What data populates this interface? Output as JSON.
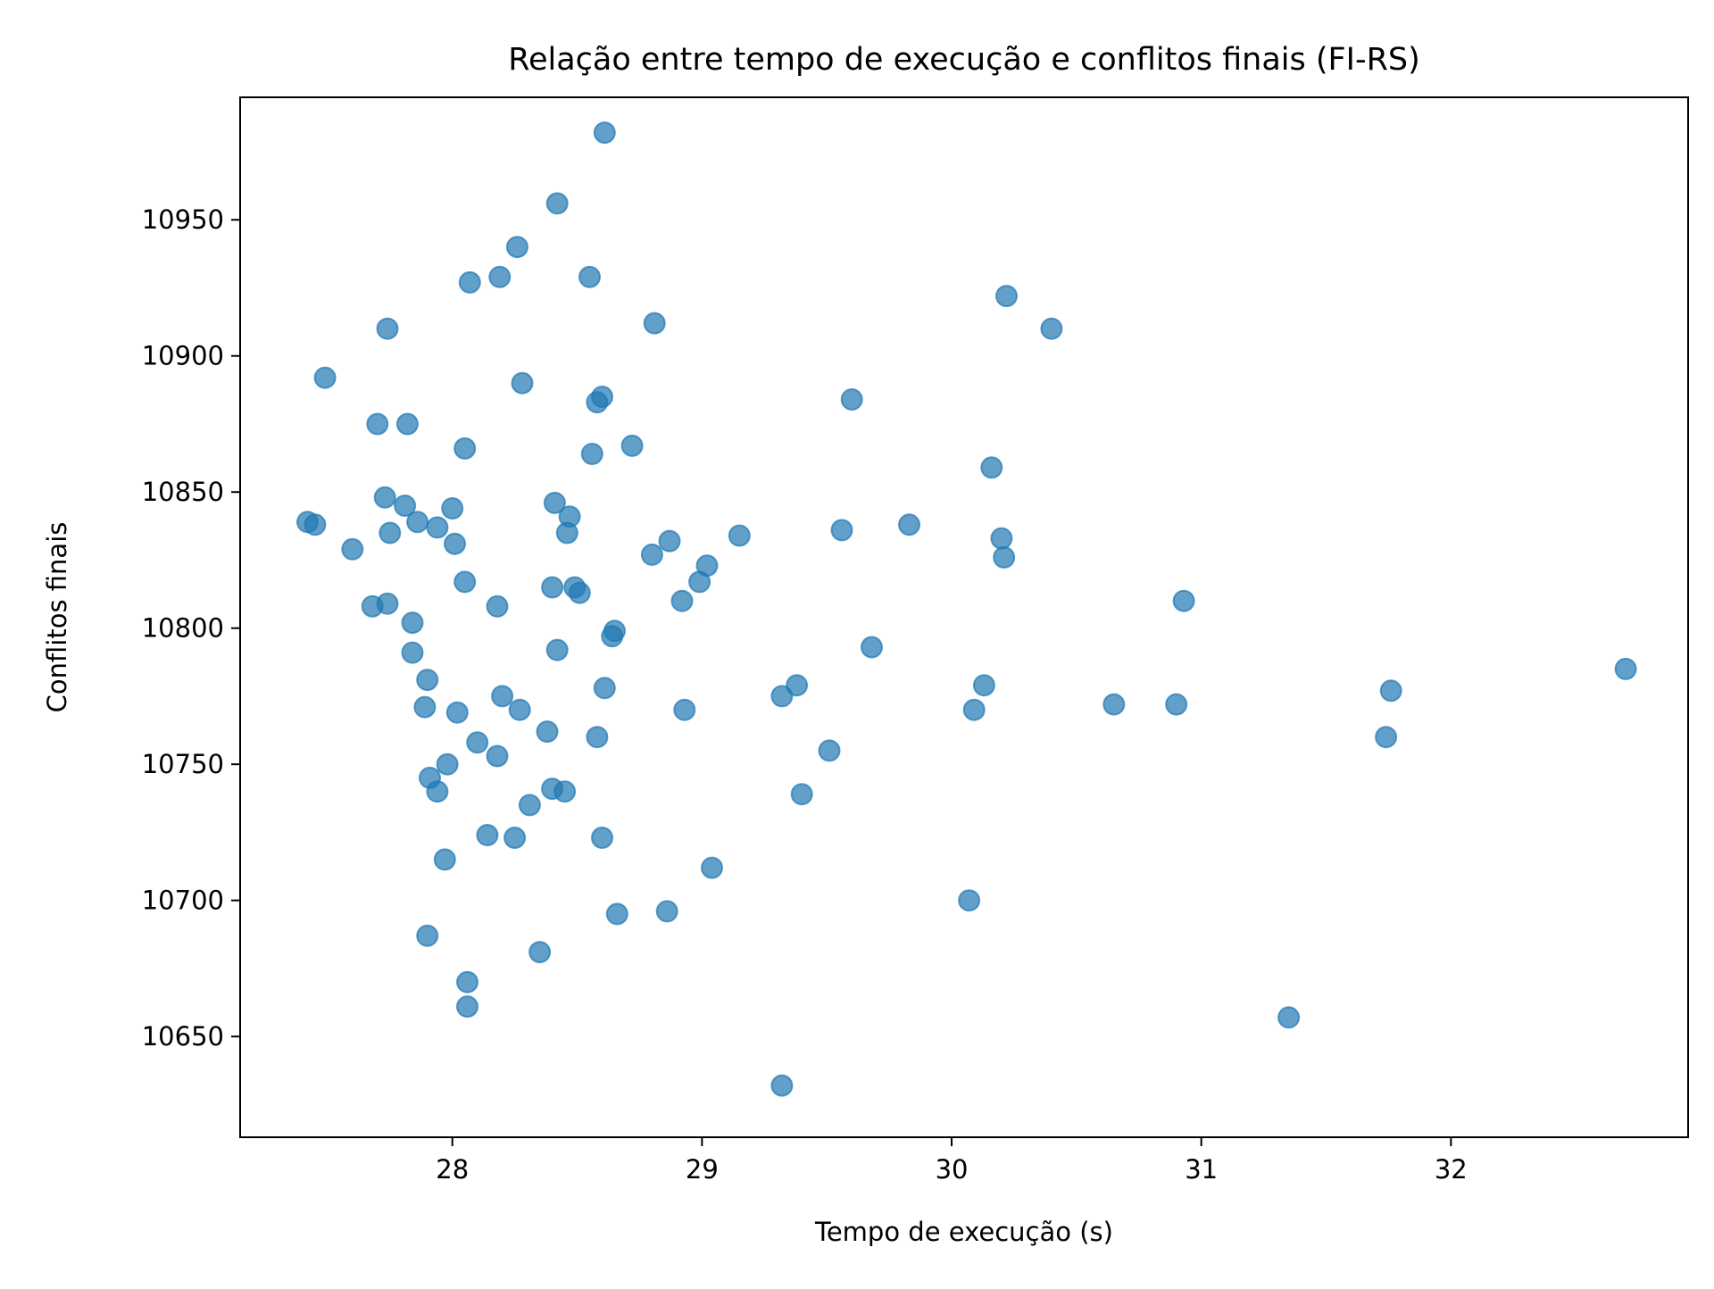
{
  "chart_data": {
    "type": "scatter",
    "title": "Relação entre tempo de execução e conflitos finais (FI-RS)",
    "xlabel": "Tempo de execução (s)",
    "ylabel": "Conflitos finais",
    "xlim": [
      27.15,
      32.95
    ],
    "ylim": [
      10613,
      10995
    ],
    "xticks": [
      28,
      29,
      30,
      31,
      32
    ],
    "xtick_labels": [
      "28",
      "29",
      "30",
      "31",
      "32"
    ],
    "yticks": [
      10650,
      10700,
      10750,
      10800,
      10850,
      10900,
      10950
    ],
    "ytick_labels": [
      "10650",
      "10700",
      "10750",
      "10800",
      "10850",
      "10900",
      "10950"
    ],
    "grid": false,
    "marker_color": "#1f77b4",
    "marker_opacity": 0.7,
    "series": [
      {
        "points": [
          [
            28.61,
            10982
          ],
          [
            28.42,
            10956
          ],
          [
            28.26,
            10940
          ],
          [
            28.19,
            10929
          ],
          [
            28.55,
            10929
          ],
          [
            28.07,
            10927
          ],
          [
            30.22,
            10922
          ],
          [
            28.81,
            10912
          ],
          [
            27.74,
            10910
          ],
          [
            30.4,
            10910
          ],
          [
            27.49,
            10892
          ],
          [
            28.28,
            10890
          ],
          [
            28.6,
            10885
          ],
          [
            29.6,
            10884
          ],
          [
            28.58,
            10883
          ],
          [
            27.7,
            10875
          ],
          [
            27.82,
            10875
          ],
          [
            28.72,
            10867
          ],
          [
            28.05,
            10866
          ],
          [
            28.56,
            10864
          ],
          [
            30.16,
            10859
          ],
          [
            27.73,
            10848
          ],
          [
            28.41,
            10846
          ],
          [
            27.81,
            10845
          ],
          [
            28.0,
            10844
          ],
          [
            28.47,
            10841
          ],
          [
            27.42,
            10839
          ],
          [
            27.86,
            10839
          ],
          [
            27.45,
            10838
          ],
          [
            29.83,
            10838
          ],
          [
            27.94,
            10837
          ],
          [
            29.56,
            10836
          ],
          [
            27.75,
            10835
          ],
          [
            28.46,
            10835
          ],
          [
            29.15,
            10834
          ],
          [
            30.2,
            10833
          ],
          [
            28.87,
            10832
          ],
          [
            28.01,
            10831
          ],
          [
            27.6,
            10829
          ],
          [
            28.8,
            10827
          ],
          [
            30.21,
            10826
          ],
          [
            29.02,
            10823
          ],
          [
            28.05,
            10817
          ],
          [
            28.99,
            10817
          ],
          [
            28.4,
            10815
          ],
          [
            28.49,
            10815
          ],
          [
            28.51,
            10813
          ],
          [
            30.93,
            10810
          ],
          [
            28.92,
            10810
          ],
          [
            27.74,
            10809
          ],
          [
            27.68,
            10808
          ],
          [
            28.18,
            10808
          ],
          [
            27.84,
            10802
          ],
          [
            28.65,
            10799
          ],
          [
            28.64,
            10797
          ],
          [
            29.68,
            10793
          ],
          [
            28.42,
            10792
          ],
          [
            27.84,
            10791
          ],
          [
            32.7,
            10785
          ],
          [
            27.9,
            10781
          ],
          [
            29.38,
            10779
          ],
          [
            30.13,
            10779
          ],
          [
            28.61,
            10778
          ],
          [
            31.76,
            10777
          ],
          [
            28.2,
            10775
          ],
          [
            29.32,
            10775
          ],
          [
            30.65,
            10772
          ],
          [
            30.9,
            10772
          ],
          [
            27.89,
            10771
          ],
          [
            28.27,
            10770
          ],
          [
            28.93,
            10770
          ],
          [
            30.09,
            10770
          ],
          [
            28.02,
            10769
          ],
          [
            28.38,
            10762
          ],
          [
            28.58,
            10760
          ],
          [
            31.74,
            10760
          ],
          [
            28.1,
            10758
          ],
          [
            29.51,
            10755
          ],
          [
            28.18,
            10753
          ],
          [
            27.98,
            10750
          ],
          [
            27.91,
            10745
          ],
          [
            28.4,
            10741
          ],
          [
            27.94,
            10740
          ],
          [
            28.45,
            10740
          ],
          [
            29.4,
            10739
          ],
          [
            28.31,
            10735
          ],
          [
            28.14,
            10724
          ],
          [
            28.25,
            10723
          ],
          [
            28.6,
            10723
          ],
          [
            27.97,
            10715
          ],
          [
            29.04,
            10712
          ],
          [
            30.07,
            10700
          ],
          [
            28.86,
            10696
          ],
          [
            28.66,
            10695
          ],
          [
            27.9,
            10687
          ],
          [
            28.35,
            10681
          ],
          [
            28.06,
            10670
          ],
          [
            28.06,
            10661
          ],
          [
            31.35,
            10657
          ],
          [
            29.32,
            10632
          ]
        ]
      }
    ]
  }
}
